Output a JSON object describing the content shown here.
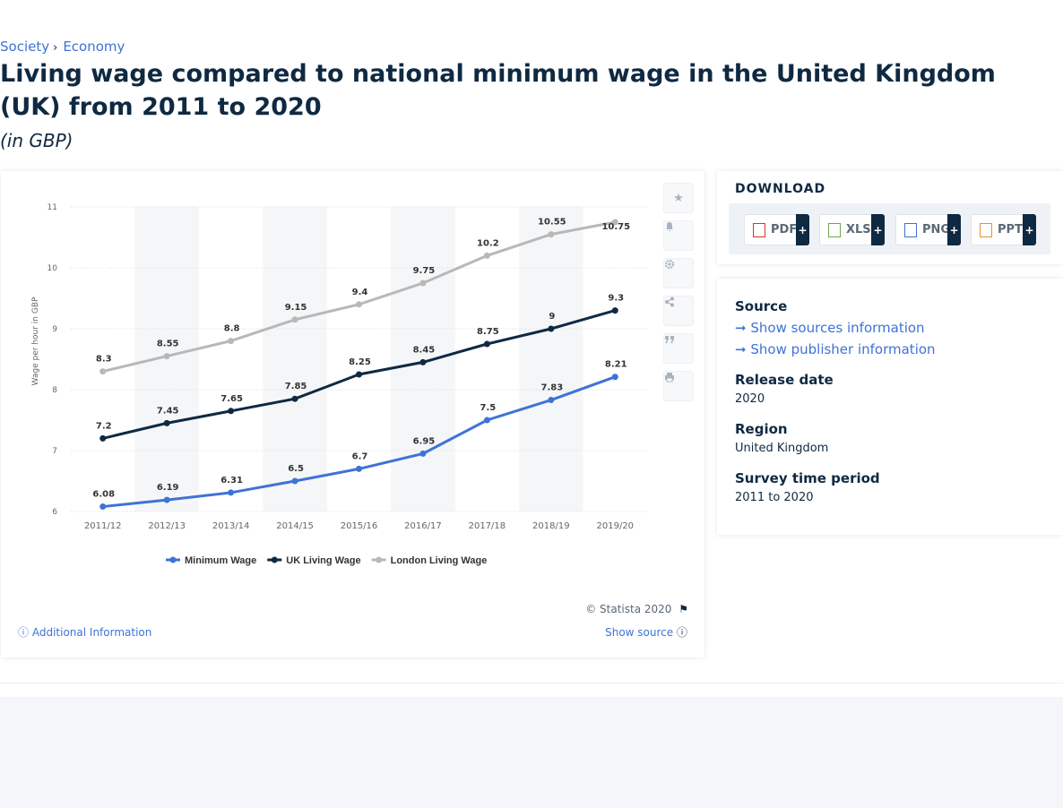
{
  "breadcrumb": {
    "item1": "Society",
    "item2": "Economy",
    "separator": "›"
  },
  "title": "Living wage compared to national minimum wage in the United Kingdom (UK) from 2011 to 2020",
  "subtitle": "(in GBP)",
  "toolbar_icons": [
    "star-icon",
    "bell-icon",
    "gear-icon",
    "share-icon",
    "quote-icon",
    "print-icon"
  ],
  "chart_footer": {
    "copyright": "© Statista 2020",
    "additional_info": "Additional Information",
    "show_source": "Show source"
  },
  "download": {
    "title": "DOWNLOAD",
    "buttons": [
      {
        "label": "PDF",
        "color": "#d9342b"
      },
      {
        "label": "XLS",
        "color": "#6aa84f"
      },
      {
        "label": "PNG",
        "color": "#3e73d6"
      },
      {
        "label": "PPT",
        "color": "#e69138"
      }
    ],
    "plus": "+"
  },
  "meta": {
    "source_label": "Source",
    "show_sources": "Show sources information",
    "show_publisher": "Show publisher information",
    "release_label": "Release date",
    "release_value": "2020",
    "region_label": "Region",
    "region_value": "United Kingdom",
    "period_label": "Survey time period",
    "period_value": "2011 to 2020"
  },
  "chart_data": {
    "type": "line",
    "categories": [
      "2011/12",
      "2012/13",
      "2013/14",
      "2014/15",
      "2015/16",
      "2016/17",
      "2017/18",
      "2018/19",
      "2019/20"
    ],
    "ylabel": "Wage per hour in GBP",
    "ylim": [
      6,
      11
    ],
    "yticks": [
      6,
      7,
      8,
      9,
      10,
      11
    ],
    "grid": true,
    "legend_position": "bottom",
    "series": [
      {
        "name": "Minimum Wage",
        "color": "#3e73d6",
        "values": [
          6.08,
          6.19,
          6.31,
          6.5,
          6.7,
          6.95,
          7.5,
          7.83,
          8.21
        ]
      },
      {
        "name": "UK Living Wage",
        "color": "#0f2942",
        "values": [
          7.2,
          7.45,
          7.65,
          7.85,
          8.25,
          8.45,
          8.75,
          9,
          9.3
        ]
      },
      {
        "name": "London Living Wage",
        "color": "#b8b8b8",
        "values": [
          8.3,
          8.55,
          8.8,
          9.15,
          9.4,
          9.75,
          10.2,
          10.55,
          10.75
        ]
      }
    ]
  }
}
